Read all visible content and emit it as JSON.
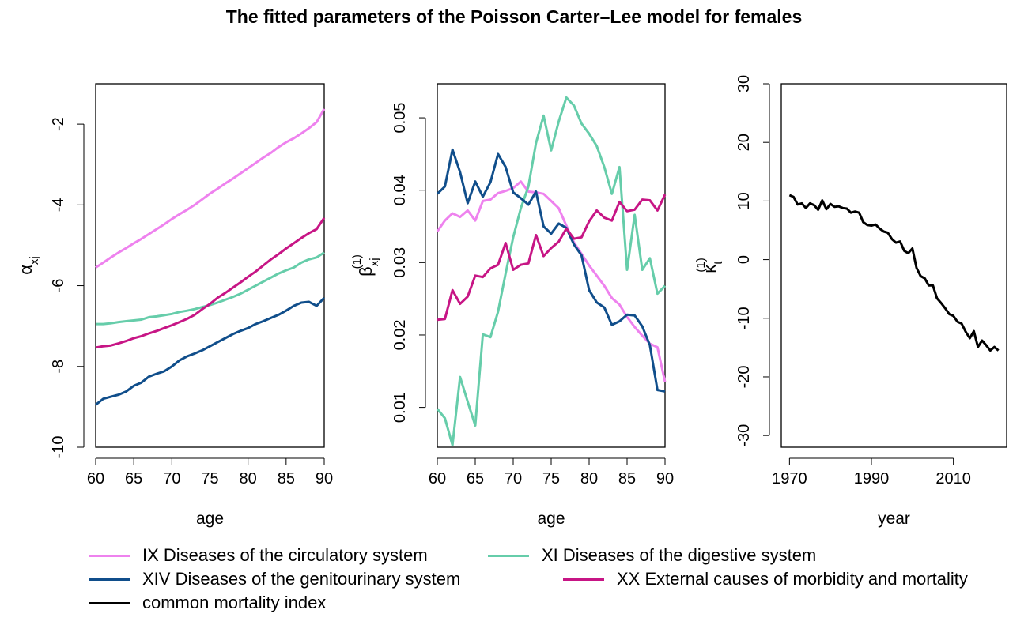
{
  "title": "The fitted parameters of the Poisson Carter–Lee model for females",
  "colors": {
    "circulatory": "#EE82EE",
    "digestive": "#66CDAA",
    "genitourinary": "#104E8B",
    "external": "#C71585",
    "common": "#000000"
  },
  "legend": [
    {
      "key": "circulatory",
      "label": "IX Diseases of the circulatory system"
    },
    {
      "key": "digestive",
      "label": "XI Diseases of the digestive system"
    },
    {
      "key": "genitourinary",
      "label": "XIV Diseases of the genitourinary system"
    },
    {
      "key": "external",
      "label": "XX External causes of morbidity and mortality"
    },
    {
      "key": "common",
      "label": "common mortality index"
    }
  ],
  "chart_data": [
    {
      "type": "line",
      "xlabel": "age",
      "ylabel": "α",
      "ylabel_sub": "xj",
      "xlim": [
        60,
        90
      ],
      "ylim": [
        -10,
        -1
      ],
      "xticks": [
        60,
        65,
        70,
        75,
        80,
        85,
        90
      ],
      "yticks": [
        -10,
        -8,
        -6,
        -4,
        -2
      ],
      "x": [
        60,
        61,
        62,
        63,
        64,
        65,
        66,
        67,
        68,
        69,
        70,
        71,
        72,
        73,
        74,
        75,
        76,
        77,
        78,
        79,
        80,
        81,
        82,
        83,
        84,
        85,
        86,
        87,
        88,
        89,
        90
      ],
      "series": [
        {
          "key": "circulatory",
          "values": [
            -5.55,
            -5.43,
            -5.3,
            -5.18,
            -5.07,
            -4.95,
            -4.84,
            -4.72,
            -4.6,
            -4.48,
            -4.35,
            -4.23,
            -4.12,
            -4.0,
            -3.86,
            -3.72,
            -3.6,
            -3.47,
            -3.35,
            -3.22,
            -3.09,
            -2.96,
            -2.83,
            -2.71,
            -2.57,
            -2.45,
            -2.35,
            -2.23,
            -2.1,
            -1.95,
            -1.62
          ]
        },
        {
          "key": "digestive",
          "values": [
            -6.95,
            -6.95,
            -6.93,
            -6.9,
            -6.88,
            -6.86,
            -6.84,
            -6.78,
            -6.76,
            -6.73,
            -6.7,
            -6.65,
            -6.62,
            -6.58,
            -6.53,
            -6.48,
            -6.42,
            -6.35,
            -6.28,
            -6.2,
            -6.1,
            -6.0,
            -5.9,
            -5.8,
            -5.7,
            -5.62,
            -5.55,
            -5.43,
            -5.35,
            -5.3,
            -5.18
          ]
        },
        {
          "key": "genitourinary",
          "values": [
            -8.95,
            -8.8,
            -8.75,
            -8.7,
            -8.62,
            -8.48,
            -8.4,
            -8.25,
            -8.18,
            -8.12,
            -8.0,
            -7.85,
            -7.75,
            -7.68,
            -7.6,
            -7.5,
            -7.4,
            -7.3,
            -7.2,
            -7.12,
            -7.05,
            -6.95,
            -6.88,
            -6.8,
            -6.72,
            -6.62,
            -6.5,
            -6.42,
            -6.4,
            -6.5,
            -6.3
          ]
        },
        {
          "key": "external",
          "values": [
            -7.53,
            -7.5,
            -7.48,
            -7.43,
            -7.37,
            -7.3,
            -7.25,
            -7.18,
            -7.12,
            -7.05,
            -6.98,
            -6.9,
            -6.82,
            -6.72,
            -6.58,
            -6.45,
            -6.3,
            -6.18,
            -6.05,
            -5.92,
            -5.78,
            -5.65,
            -5.5,
            -5.35,
            -5.22,
            -5.08,
            -4.95,
            -4.82,
            -4.7,
            -4.6,
            -4.32
          ]
        }
      ]
    },
    {
      "type": "line",
      "xlabel": "age",
      "ylabel": "β",
      "ylabel_sub": "xj",
      "ylabel_sup": "(1)",
      "xlim": [
        60,
        90
      ],
      "ylim": [
        0.0045,
        0.0547
      ],
      "xticks": [
        60,
        65,
        70,
        75,
        80,
        85,
        90
      ],
      "yticks": [
        0.01,
        0.02,
        0.03,
        0.04,
        0.05
      ],
      "ytick_labels": [
        "0.01",
        "0.02",
        "0.03",
        "0.04",
        "0.05"
      ],
      "x": [
        60,
        61,
        62,
        63,
        64,
        65,
        66,
        67,
        68,
        69,
        70,
        71,
        72,
        73,
        74,
        75,
        76,
        77,
        78,
        79,
        80,
        81,
        82,
        83,
        84,
        85,
        86,
        87,
        88,
        89,
        90
      ],
      "series": [
        {
          "key": "circulatory",
          "values": [
            0.0343,
            0.0358,
            0.0368,
            0.0363,
            0.0372,
            0.0358,
            0.0385,
            0.0387,
            0.0396,
            0.0399,
            0.0403,
            0.0412,
            0.0398,
            0.0397,
            0.0395,
            0.0385,
            0.0375,
            0.0351,
            0.0328,
            0.0312,
            0.0296,
            0.0282,
            0.0268,
            0.0251,
            0.0242,
            0.0225,
            0.0211,
            0.0199,
            0.0188,
            0.0183,
            0.0135
          ]
        },
        {
          "key": "digestive",
          "values": [
            0.0098,
            0.0085,
            0.0048,
            0.0142,
            0.0108,
            0.0075,
            0.0201,
            0.0197,
            0.0232,
            0.0285,
            0.0335,
            0.0375,
            0.0405,
            0.0465,
            0.0503,
            0.0455,
            0.0495,
            0.0528,
            0.0517,
            0.0492,
            0.0478,
            0.0461,
            0.0432,
            0.0395,
            0.0432,
            0.029,
            0.0366,
            0.029,
            0.0306,
            0.0257,
            0.0268
          ]
        },
        {
          "key": "genitourinary",
          "values": [
            0.0395,
            0.0405,
            0.0456,
            0.0425,
            0.0382,
            0.0412,
            0.0391,
            0.0411,
            0.045,
            0.0432,
            0.0397,
            0.0389,
            0.038,
            0.0398,
            0.035,
            0.034,
            0.0354,
            0.0348,
            0.0325,
            0.031,
            0.0262,
            0.0245,
            0.0238,
            0.0214,
            0.0219,
            0.0228,
            0.0227,
            0.0212,
            0.0186,
            0.0124,
            0.0122
          ]
        },
        {
          "key": "external",
          "values": [
            0.0221,
            0.0222,
            0.0262,
            0.0243,
            0.0253,
            0.0282,
            0.028,
            0.0292,
            0.0297,
            0.0327,
            0.029,
            0.0297,
            0.0299,
            0.0338,
            0.0309,
            0.032,
            0.0329,
            0.0347,
            0.0333,
            0.0335,
            0.0357,
            0.0372,
            0.0362,
            0.0358,
            0.0384,
            0.0371,
            0.0373,
            0.0387,
            0.0386,
            0.0372,
            0.0394
          ]
        }
      ]
    },
    {
      "type": "line",
      "xlabel": "year",
      "ylabel": "κ",
      "ylabel_sub": "t",
      "ylabel_sup": "(1)",
      "xlim": [
        1968,
        2023
      ],
      "ylim": [
        -32,
        30
      ],
      "xticks": [
        1970,
        1990,
        2010
      ],
      "yticks": [
        -30,
        -20,
        -10,
        0,
        10,
        20,
        30
      ],
      "x": [
        1970,
        1971,
        1972,
        1973,
        1974,
        1975,
        1976,
        1977,
        1978,
        1979,
        1980,
        1981,
        1982,
        1983,
        1984,
        1985,
        1986,
        1987,
        1988,
        1989,
        1990,
        1991,
        1992,
        1993,
        1994,
        1995,
        1996,
        1997,
        1998,
        1999,
        2000,
        2001,
        2002,
        2003,
        2004,
        2005,
        2006,
        2007,
        2008,
        2009,
        2010,
        2011,
        2012,
        2013,
        2014,
        2015,
        2016,
        2017,
        2018,
        2019,
        2020,
        2021
      ],
      "series": [
        {
          "key": "common",
          "values": [
            11.0,
            10.7,
            9.4,
            9.6,
            8.8,
            9.6,
            9.3,
            8.5,
            10.1,
            8.6,
            9.5,
            9.0,
            9.1,
            8.8,
            8.7,
            8.0,
            8.2,
            8.0,
            6.4,
            5.9,
            5.8,
            6.0,
            5.3,
            4.8,
            4.6,
            3.5,
            2.9,
            3.1,
            1.5,
            1.1,
            1.9,
            -1.4,
            -2.8,
            -3.2,
            -4.4,
            -4.4,
            -6.6,
            -7.4,
            -8.3,
            -9.3,
            -9.6,
            -10.6,
            -10.9,
            -12.3,
            -13.4,
            -12.2,
            -14.9,
            -13.8,
            -14.6,
            -15.5,
            -14.9,
            -15.5
          ]
        }
      ]
    }
  ]
}
